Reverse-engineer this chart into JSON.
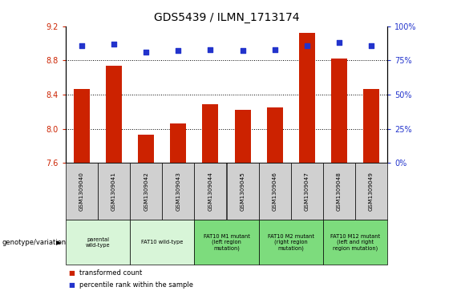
{
  "title": "GDS5439 / ILMN_1713174",
  "samples": [
    "GSM1309040",
    "GSM1309041",
    "GSM1309042",
    "GSM1309043",
    "GSM1309044",
    "GSM1309045",
    "GSM1309046",
    "GSM1309047",
    "GSM1309048",
    "GSM1309049"
  ],
  "red_values": [
    8.47,
    8.74,
    7.93,
    8.06,
    8.29,
    8.22,
    8.25,
    9.12,
    8.82,
    8.47
  ],
  "blue_values": [
    86,
    87,
    81,
    82,
    83,
    82,
    83,
    86,
    88,
    86
  ],
  "ylim_left": [
    7.6,
    9.2
  ],
  "ylim_right": [
    0,
    100
  ],
  "yticks_left": [
    7.6,
    8.0,
    8.4,
    8.8,
    9.2
  ],
  "yticks_right": [
    0,
    25,
    50,
    75,
    100
  ],
  "ytick_labels_right": [
    "0%",
    "25%",
    "50%",
    "75%",
    "100%"
  ],
  "hlines": [
    8.0,
    8.4,
    8.8
  ],
  "bar_color": "#cc2200",
  "dot_color": "#2233cc",
  "bar_width": 0.5,
  "dot_size": 18,
  "sample_row_color": "#d0d0d0",
  "group1_color": "#d8f5d8",
  "group2_color": "#7ddc7d",
  "genotype_label": "genotype/variation",
  "legend_red": "transformed count",
  "legend_blue": "percentile rank within the sample",
  "title_fontsize": 10,
  "tick_fontsize": 7,
  "groups": [
    {
      "label": "parental\nwild-type",
      "start": 0,
      "end": 2,
      "color": "#d8f5d8"
    },
    {
      "label": "FAT10 wild-type",
      "start": 2,
      "end": 4,
      "color": "#d8f5d8"
    },
    {
      "label": "FAT10 M1 mutant\n(left region\nmutation)",
      "start": 4,
      "end": 6,
      "color": "#7ddc7d"
    },
    {
      "label": "FAT10 M2 mutant\n(right region\nmutation)",
      "start": 6,
      "end": 8,
      "color": "#7ddc7d"
    },
    {
      "label": "FAT10 M12 mutant\n(left and right\nregion mutation)",
      "start": 8,
      "end": 10,
      "color": "#7ddc7d"
    }
  ]
}
